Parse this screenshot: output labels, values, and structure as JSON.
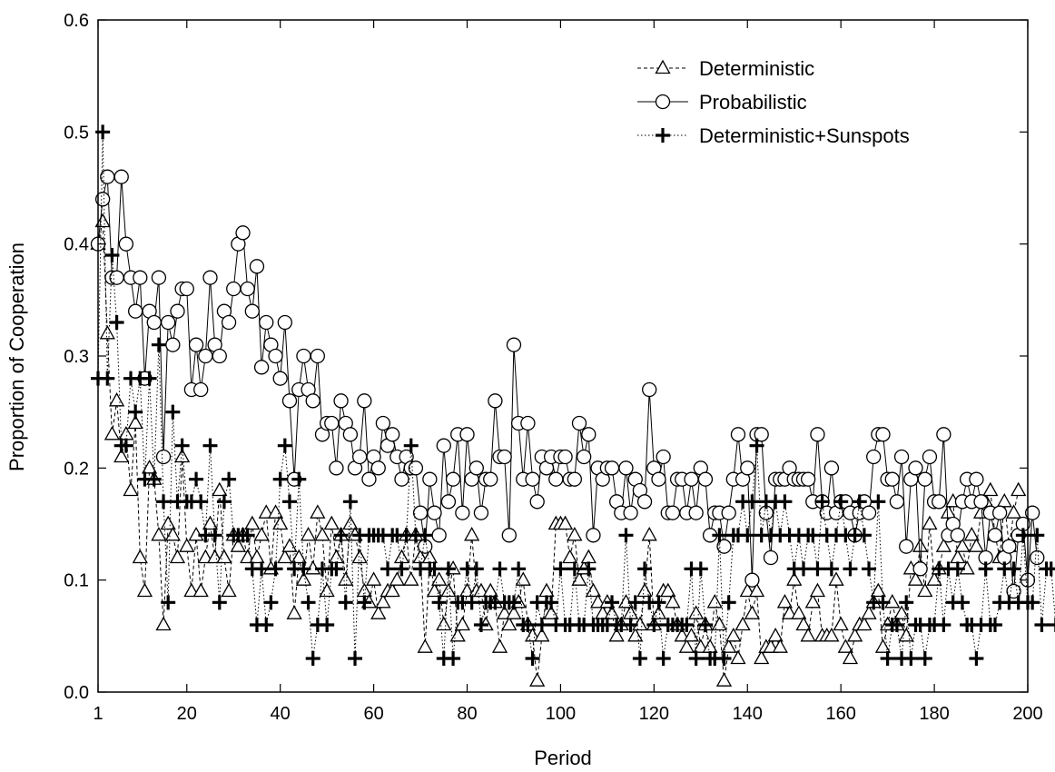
{
  "chart_data": {
    "type": "line",
    "xlabel": "Period",
    "ylabel": "Proportion of Cooperation",
    "xlim": [
      1,
      200
    ],
    "ylim": [
      0.0,
      0.6
    ],
    "xticks": [
      1,
      20,
      40,
      60,
      80,
      100,
      120,
      140,
      160,
      180,
      200
    ],
    "yticks": [
      "0.0",
      "0.1",
      "0.2",
      "0.3",
      "0.4",
      "0.5",
      "0.6"
    ],
    "grid": false,
    "legend_position": "top-right",
    "series": [
      {
        "name": "Deterministic",
        "marker": "triangle",
        "line_style": "dashed",
        "values": [
          0.4,
          0.42,
          0.32,
          0.23,
          0.26,
          0.21,
          0.23,
          0.18,
          0.24,
          0.12,
          0.09,
          0.2,
          0.19,
          0.14,
          0.06,
          0.15,
          0.14,
          0.12,
          0.21,
          0.13,
          0.09,
          0.14,
          0.09,
          0.12,
          0.15,
          0.12,
          0.18,
          0.12,
          0.09,
          0.14,
          0.13,
          0.14,
          0.12,
          0.15,
          0.12,
          0.14,
          0.16,
          0.11,
          0.16,
          0.15,
          0.12,
          0.13,
          0.07,
          0.12,
          0.1,
          0.14,
          0.11,
          0.16,
          0.14,
          0.09,
          0.15,
          0.12,
          0.14,
          0.1,
          0.15,
          0.14,
          0.12,
          0.09,
          0.08,
          0.1,
          0.07,
          0.08,
          0.09,
          0.09,
          0.1,
          0.12,
          0.14,
          0.1,
          0.14,
          0.12,
          0.04,
          0.12,
          0.09,
          0.1,
          0.06,
          0.09,
          0.11,
          0.05,
          0.06,
          0.09,
          0.14,
          0.09,
          0.09,
          0.06,
          0.09,
          0.08,
          0.04,
          0.07,
          0.06,
          0.07,
          0.08,
          0.1,
          0.06,
          0.05,
          0.01,
          0.05,
          0.09,
          0.07,
          0.15,
          0.15,
          0.15,
          0.12,
          0.14,
          0.1,
          0.11,
          0.12,
          0.09,
          0.08,
          0.07,
          0.08,
          0.07,
          0.05,
          0.06,
          0.08,
          0.07,
          0.05,
          0.06,
          0.09,
          0.14,
          0.06,
          0.07,
          0.09,
          0.09,
          0.08,
          0.06,
          0.05,
          0.04,
          0.05,
          0.07,
          0.04,
          0.06,
          0.04,
          0.08,
          0.06,
          0.01,
          0.04,
          0.05,
          0.03,
          0.06,
          0.09,
          0.07,
          0.09,
          0.03,
          0.04,
          0.04,
          0.05,
          0.04,
          0.08,
          0.07,
          0.1,
          0.07,
          0.06,
          0.05,
          0.08,
          0.09,
          0.05,
          0.05,
          0.05,
          0.1,
          0.06,
          0.04,
          0.03,
          0.05,
          0.06,
          0.06,
          0.07,
          0.08,
          0.09,
          0.04,
          0.06,
          0.08,
          0.06,
          0.07,
          0.05,
          0.11,
          0.1,
          0.13,
          0.09,
          0.15,
          0.1,
          0.11,
          0.13,
          0.16,
          0.17,
          0.12,
          0.13,
          0.11,
          0.14,
          0.13,
          0.16,
          0.17,
          0.18,
          0.14,
          0.12,
          0.17,
          0.13,
          0.16,
          0.18
        ]
      },
      {
        "name": "Probabilistic",
        "marker": "circle",
        "line_style": "solid",
        "values": [
          0.4,
          0.44,
          0.46,
          0.37,
          0.37,
          0.46,
          0.4,
          0.37,
          0.34,
          0.37,
          0.28,
          0.34,
          0.33,
          0.37,
          0.21,
          0.33,
          0.31,
          0.34,
          0.36,
          0.36,
          0.27,
          0.31,
          0.27,
          0.3,
          0.37,
          0.31,
          0.3,
          0.34,
          0.33,
          0.36,
          0.4,
          0.41,
          0.36,
          0.34,
          0.38,
          0.29,
          0.33,
          0.31,
          0.3,
          0.28,
          0.33,
          0.26,
          0.19,
          0.27,
          0.3,
          0.27,
          0.26,
          0.3,
          0.23,
          0.24,
          0.24,
          0.2,
          0.26,
          0.24,
          0.23,
          0.2,
          0.21,
          0.26,
          0.19,
          0.21,
          0.2,
          0.24,
          0.22,
          0.23,
          0.21,
          0.19,
          0.21,
          0.2,
          0.2,
          0.16,
          0.13,
          0.19,
          0.16,
          0.14,
          0.22,
          0.17,
          0.19,
          0.23,
          0.16,
          0.23,
          0.19,
          0.2,
          0.16,
          0.19,
          0.19,
          0.26,
          0.21,
          0.21,
          0.14,
          0.31,
          0.24,
          0.19,
          0.24,
          0.19,
          0.17,
          0.21,
          0.2,
          0.21,
          0.19,
          0.21,
          0.21,
          0.19,
          0.19,
          0.24,
          0.21,
          0.23,
          0.14,
          0.2,
          0.19,
          0.2,
          0.2,
          0.17,
          0.16,
          0.2,
          0.16,
          0.19,
          0.18,
          0.17,
          0.27,
          0.2,
          0.19,
          0.21,
          0.16,
          0.16,
          0.19,
          0.19,
          0.16,
          0.19,
          0.16,
          0.2,
          0.19,
          0.14,
          0.16,
          0.16,
          0.13,
          0.16,
          0.19,
          0.23,
          0.19,
          0.2,
          0.1,
          0.23,
          0.23,
          0.16,
          0.12,
          0.19,
          0.19,
          0.19,
          0.2,
          0.19,
          0.19,
          0.19,
          0.19,
          0.17,
          0.23,
          0.17,
          0.16,
          0.2,
          0.16,
          0.17,
          0.17,
          0.16,
          0.14,
          0.16,
          0.17,
          0.16,
          0.21,
          0.23,
          0.23,
          0.19,
          0.19,
          0.17,
          0.21,
          0.13,
          0.19,
          0.2,
          0.11,
          0.19,
          0.21,
          0.17,
          0.17,
          0.23,
          0.14,
          0.15,
          0.14,
          0.17,
          0.19,
          0.17,
          0.19,
          0.17,
          0.12,
          0.16,
          0.14,
          0.16,
          0.12,
          0.13,
          0.09,
          0.14,
          0.15,
          0.1,
          0.16,
          0.12
        ]
      },
      {
        "name": "Deterministic+Sunspots",
        "marker": "plus",
        "line_style": "dotted",
        "values": [
          0.28,
          0.5,
          0.28,
          0.39,
          0.33,
          0.22,
          0.22,
          0.28,
          0.25,
          0.28,
          0.19,
          0.28,
          0.19,
          0.31,
          0.17,
          0.08,
          0.25,
          0.17,
          0.22,
          0.17,
          0.17,
          0.19,
          0.17,
          0.14,
          0.22,
          0.14,
          0.08,
          0.17,
          0.19,
          0.14,
          0.14,
          0.14,
          0.14,
          0.11,
          0.06,
          0.11,
          0.06,
          0.08,
          0.11,
          0.19,
          0.22,
          0.17,
          0.11,
          0.19,
          0.11,
          0.08,
          0.03,
          0.06,
          0.11,
          0.06,
          0.11,
          0.11,
          0.14,
          0.08,
          0.17,
          0.03,
          0.14,
          0.08,
          0.14,
          0.14,
          0.14,
          0.14,
          0.11,
          0.14,
          0.14,
          0.11,
          0.14,
          0.22,
          0.14,
          0.11,
          0.14,
          0.11,
          0.11,
          0.08,
          0.03,
          0.11,
          0.03,
          0.08,
          0.08,
          0.11,
          0.08,
          0.11,
          0.06,
          0.08,
          0.08,
          0.08,
          0.11,
          0.08,
          0.08,
          0.08,
          0.11,
          0.06,
          0.06,
          0.03,
          0.08,
          0.06,
          0.08,
          0.08,
          0.06,
          0.11,
          0.06,
          0.06,
          0.11,
          0.06,
          0.06,
          0.11,
          0.06,
          0.06,
          0.06,
          0.06,
          0.08,
          0.06,
          0.06,
          0.14,
          0.06,
          0.08,
          0.03,
          0.11,
          0.08,
          0.06,
          0.08,
          0.03,
          0.06,
          0.06,
          0.06,
          0.06,
          0.06,
          0.11,
          0.03,
          0.11,
          0.06,
          0.03,
          0.03,
          0.14,
          0.03,
          0.08,
          0.14,
          0.14,
          0.17,
          0.14,
          0.17,
          0.22,
          0.14,
          0.17,
          0.14,
          0.17,
          0.14,
          0.17,
          0.14,
          0.11,
          0.14,
          0.11,
          0.14,
          0.14,
          0.11,
          0.17,
          0.14,
          0.11,
          0.14,
          0.17,
          0.14,
          0.11,
          0.14,
          0.17,
          0.14,
          0.11,
          0.08,
          0.17,
          0.08,
          0.03,
          0.06,
          0.06,
          0.03,
          0.08,
          0.03,
          0.06,
          0.06,
          0.03,
          0.06,
          0.06,
          0.11,
          0.06,
          0.11,
          0.08,
          0.11,
          0.08,
          0.06,
          0.06,
          0.03,
          0.06,
          0.11,
          0.06,
          0.06,
          0.08,
          0.11,
          0.08,
          0.11,
          0.08,
          0.14,
          0.08,
          0.08,
          0.14,
          0.06,
          0.11,
          0.11,
          0.06
        ]
      }
    ]
  }
}
